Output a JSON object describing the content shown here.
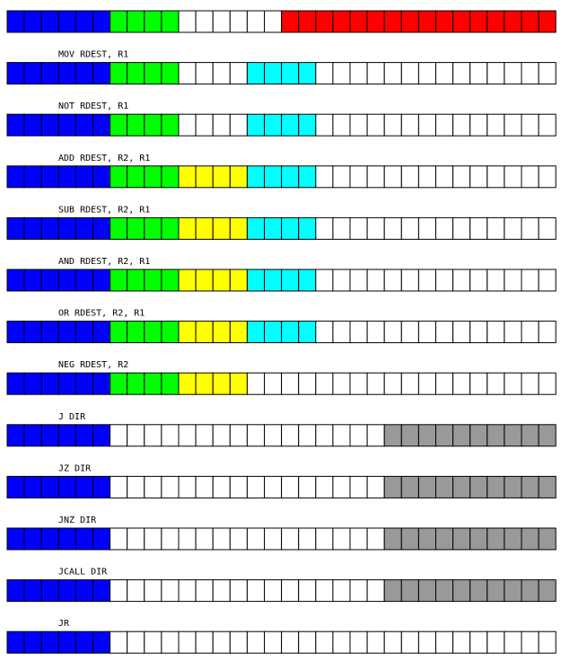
{
  "colors": {
    "opcode": "#0000ff",
    "rdest": "#00ff00",
    "r2": "#ffff00",
    "r1": "#00ffff",
    "immediate": "#ff0000",
    "dir": "#999999",
    "empty": "#ffffff",
    "border": "#000000"
  },
  "formats": [
    {
      "label": "",
      "segments": [
        [
          "opcode",
          6
        ],
        [
          "rdest",
          4
        ],
        [
          "empty",
          6
        ],
        [
          "immediate",
          16
        ]
      ]
    },
    {
      "label": "MOV RDEST, R1",
      "segments": [
        [
          "opcode",
          6
        ],
        [
          "rdest",
          4
        ],
        [
          "empty",
          4
        ],
        [
          "r1",
          4
        ],
        [
          "empty",
          14
        ]
      ]
    },
    {
      "label": "NOT RDEST, R1",
      "segments": [
        [
          "opcode",
          6
        ],
        [
          "rdest",
          4
        ],
        [
          "empty",
          4
        ],
        [
          "r1",
          4
        ],
        [
          "empty",
          14
        ]
      ]
    },
    {
      "label": "ADD RDEST, R2, R1",
      "segments": [
        [
          "opcode",
          6
        ],
        [
          "rdest",
          4
        ],
        [
          "r2",
          4
        ],
        [
          "r1",
          4
        ],
        [
          "empty",
          14
        ]
      ]
    },
    {
      "label": "SUB RDEST, R2, R1",
      "segments": [
        [
          "opcode",
          6
        ],
        [
          "rdest",
          4
        ],
        [
          "r2",
          4
        ],
        [
          "r1",
          4
        ],
        [
          "empty",
          14
        ]
      ]
    },
    {
      "label": "AND RDEST, R2, R1",
      "segments": [
        [
          "opcode",
          6
        ],
        [
          "rdest",
          4
        ],
        [
          "r2",
          4
        ],
        [
          "r1",
          4
        ],
        [
          "empty",
          14
        ]
      ]
    },
    {
      "label": "OR RDEST, R2, R1",
      "segments": [
        [
          "opcode",
          6
        ],
        [
          "rdest",
          4
        ],
        [
          "r2",
          4
        ],
        [
          "r1",
          4
        ],
        [
          "empty",
          14
        ]
      ]
    },
    {
      "label": "NEG RDEST, R2",
      "segments": [
        [
          "opcode",
          6
        ],
        [
          "rdest",
          4
        ],
        [
          "r2",
          4
        ],
        [
          "empty",
          18
        ]
      ]
    },
    {
      "label": "J DIR",
      "segments": [
        [
          "opcode",
          6
        ],
        [
          "empty",
          16
        ],
        [
          "dir",
          10
        ]
      ]
    },
    {
      "label": "JZ DIR",
      "segments": [
        [
          "opcode",
          6
        ],
        [
          "empty",
          16
        ],
        [
          "dir",
          10
        ]
      ]
    },
    {
      "label": "JNZ DIR",
      "segments": [
        [
          "opcode",
          6
        ],
        [
          "empty",
          16
        ],
        [
          "dir",
          10
        ]
      ]
    },
    {
      "label": "JCALL DIR",
      "segments": [
        [
          "opcode",
          6
        ],
        [
          "empty",
          16
        ],
        [
          "dir",
          10
        ]
      ]
    },
    {
      "label": "JR",
      "segments": [
        [
          "opcode",
          6
        ],
        [
          "empty",
          26
        ]
      ]
    }
  ]
}
